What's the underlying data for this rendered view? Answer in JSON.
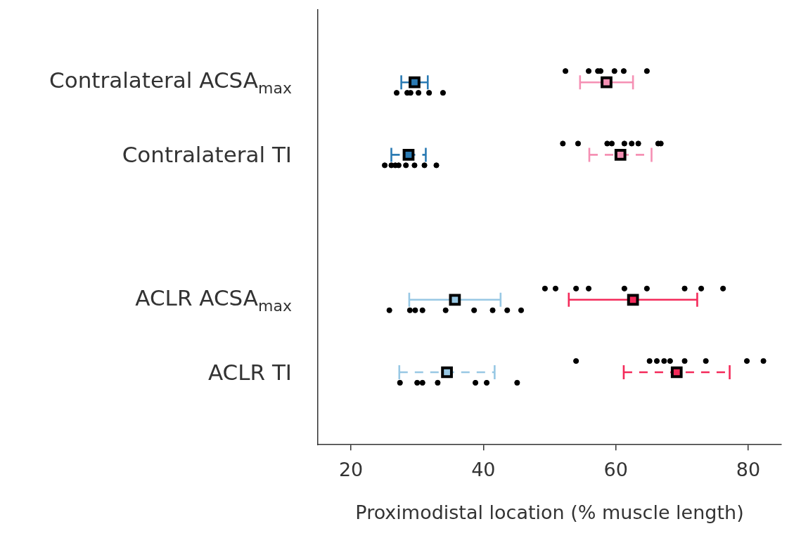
{
  "chart_data": {
    "type": "scatter",
    "orientation": "horizontal",
    "xlabel": "Proximodistal location (% muscle length)",
    "categories": [
      "Contralateral ACSA$_{max}$",
      "Contralateral TI",
      null,
      "ACLR ACSA$_{max}$",
      "ACLR TI"
    ],
    "xlim": [
      15,
      85
    ],
    "xticks": [
      20,
      40,
      60,
      80
    ],
    "grid": false,
    "legend": false,
    "series": [
      {
        "marker": "circle",
        "color": "#000000",
        "x": [
          "Contralateral ACSA$_{max}$",
          "Contralateral ACSA$_{max}$",
          "Contralateral ACSA$_{max}$",
          "Contralateral ACSA$_{max}$",
          "Contralateral ACSA$_{max}$",
          "Contralateral ACSA$_{max}$",
          "Contralateral TI",
          "Contralateral TI",
          "Contralateral TI",
          "Contralateral TI",
          "Contralateral TI",
          "Contralateral TI",
          "Contralateral TI",
          "Contralateral TI",
          "ACLR ACSA$_{max}$",
          "ACLR ACSA$_{max}$",
          "ACLR ACSA$_{max}$",
          "ACLR ACSA$_{max}$",
          "ACLR ACSA$_{max}$",
          "ACLR ACSA$_{max}$",
          "ACLR ACSA$_{max}$",
          "ACLR ACSA$_{max}$",
          "ACLR ACSA$_{max}$",
          "ACLR TI",
          "ACLR TI",
          "ACLR TI",
          "ACLR TI",
          "ACLR TI",
          "ACLR TI",
          "ACLR TI"
        ],
        "values": [
          26.9,
          28.5,
          29.0,
          30.2,
          31.8,
          33.9,
          25.1,
          26.1,
          26.7,
          27.2,
          28.3,
          29.6,
          31.1,
          32.9,
          25.8,
          28.9,
          29.7,
          30.8,
          34.3,
          38.6,
          41.4,
          43.6,
          45.7,
          27.4,
          30.0,
          30.8,
          33.1,
          38.8,
          40.5,
          45.1
        ]
      },
      {
        "marker": "circle",
        "color": "#000000",
        "x": [
          "Contralateral ACSA$_{max}$",
          "Contralateral ACSA$_{max}$",
          "Contralateral ACSA$_{max}$",
          "Contralateral ACSA$_{max}$",
          "Contralateral ACSA$_{max}$",
          "Contralateral ACSA$_{max}$",
          "Contralateral ACSA$_{max}$",
          "Contralateral TI",
          "Contralateral TI",
          "Contralateral TI",
          "Contralateral TI",
          "Contralateral TI",
          "Contralateral TI",
          "Contralateral TI",
          "Contralateral TI",
          "Contralateral TI",
          "ACLR ACSA$_{max}$",
          "ACLR ACSA$_{max}$",
          "ACLR ACSA$_{max}$",
          "ACLR ACSA$_{max}$",
          "ACLR ACSA$_{max}$",
          "ACLR ACSA$_{max}$",
          "ACLR ACSA$_{max}$",
          "ACLR ACSA$_{max}$",
          "ACLR ACSA$_{max}$",
          "ACLR TI",
          "ACLR TI",
          "ACLR TI",
          "ACLR TI",
          "ACLR TI",
          "ACLR TI",
          "ACLR TI",
          "ACLR TI",
          "ACLR TI"
        ],
        "values": [
          52.4,
          55.9,
          57.3,
          57.7,
          59.8,
          61.2,
          64.7,
          52.0,
          54.3,
          58.7,
          59.4,
          61.3,
          62.4,
          63.4,
          66.4,
          66.8,
          49.3,
          50.9,
          54.0,
          55.9,
          61.3,
          64.7,
          70.4,
          72.9,
          76.2,
          54.0,
          65.1,
          66.2,
          67.3,
          68.2,
          70.4,
          73.6,
          79.8,
          82.3
        ]
      },
      {
        "marker": "square",
        "color": "#2b7bb4",
        "line_style": "solid",
        "x": [
          "Contralateral ACSA$_{max}$"
        ],
        "values": [
          29.6
        ],
        "errors": [
          2.0
        ]
      },
      {
        "marker": "square",
        "color": "#f590b4",
        "line_style": "solid",
        "x": [
          "Contralateral ACSA$_{max}$"
        ],
        "values": [
          58.6
        ],
        "errors": [
          4.0
        ]
      },
      {
        "marker": "square",
        "color": "#2b7bb4",
        "line_style": "dashed",
        "x": [
          "Contralateral TI"
        ],
        "values": [
          28.7
        ],
        "errors": [
          2.6
        ]
      },
      {
        "marker": "square",
        "color": "#f590b4",
        "line_style": "dashed",
        "x": [
          "Contralateral TI"
        ],
        "values": [
          60.7
        ],
        "errors": [
          4.7
        ]
      },
      {
        "marker": "square",
        "color": "#98c8e4",
        "line_style": "solid",
        "x": [
          "ACLR ACSA$_{max}$"
        ],
        "values": [
          35.7
        ],
        "errors": [
          6.9
        ]
      },
      {
        "marker": "square",
        "color": "#f42a5a",
        "line_style": "solid",
        "x": [
          "ACLR ACSA$_{max}$"
        ],
        "values": [
          62.6
        ],
        "errors": [
          9.7
        ]
      },
      {
        "marker": "square",
        "color": "#98c8e4",
        "line_style": "dashed",
        "x": [
          "ACLR TI"
        ],
        "values": [
          34.5
        ],
        "errors": [
          7.2
        ]
      },
      {
        "marker": "square",
        "color": "#f42a5a",
        "line_style": "dashed",
        "x": [
          "ACLR TI"
        ],
        "values": [
          69.2
        ],
        "errors": [
          8.0
        ]
      }
    ]
  }
}
